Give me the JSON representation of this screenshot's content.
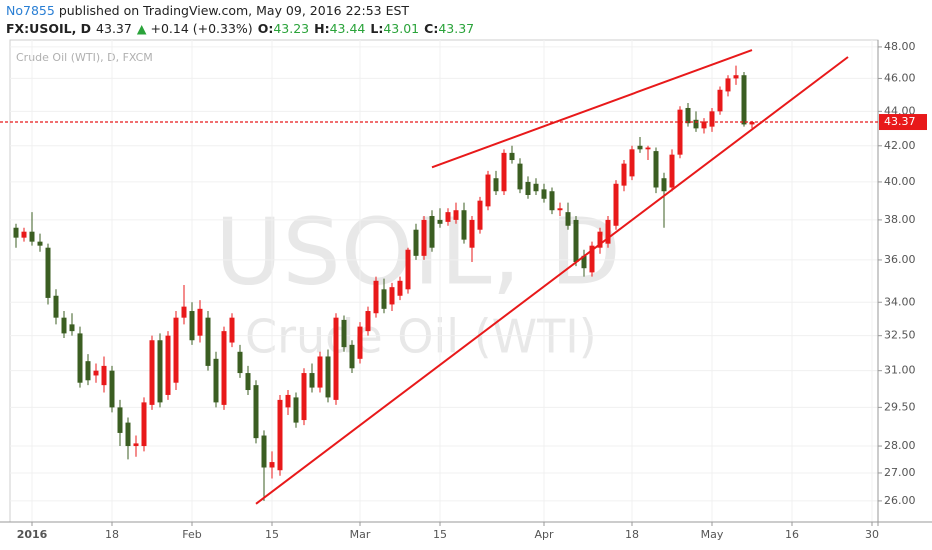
{
  "header": {
    "author": "No7855",
    "published": "published on TradingView.com, May 09, 2016 22:53 EST",
    "symbol": "FX:USOIL, D",
    "last": "43.37",
    "arrow": "▲",
    "change": "+0.14 (+0.33%)",
    "fields": [
      {
        "label": "O:",
        "value": "43.23"
      },
      {
        "label": "H:",
        "value": "43.44"
      },
      {
        "label": "L:",
        "value": "43.01"
      },
      {
        "label": "C:",
        "value": "43.37"
      }
    ]
  },
  "chart_data": {
    "type": "candlestick",
    "subtitle": "Crude Oil (WTI), D, FXCM",
    "watermark": [
      "USOIL, D",
      "Crude Oil (WTI)"
    ],
    "x": [
      "2015-12-31",
      "2016-01-01",
      "2016-01-04",
      "2016-01-05",
      "2016-01-06",
      "2016-01-07",
      "2016-01-08",
      "2016-01-11",
      "2016-01-12",
      "2016-01-13",
      "2016-01-14",
      "2016-01-15",
      "2016-01-18",
      "2016-01-19",
      "2016-01-20",
      "2016-01-21",
      "2016-01-22",
      "2016-01-25",
      "2016-01-26",
      "2016-01-27",
      "2016-01-28",
      "2016-01-29",
      "2016-02-01",
      "2016-02-02",
      "2016-02-03",
      "2016-02-04",
      "2016-02-05",
      "2016-02-08",
      "2016-02-09",
      "2016-02-10",
      "2016-02-11",
      "2016-02-12",
      "2016-02-15",
      "2016-02-16",
      "2016-02-17",
      "2016-02-18",
      "2016-02-19",
      "2016-02-22",
      "2016-02-23",
      "2016-02-24",
      "2016-02-25",
      "2016-02-26",
      "2016-02-29",
      "2016-03-01",
      "2016-03-02",
      "2016-03-03",
      "2016-03-04",
      "2016-03-07",
      "2016-03-08",
      "2016-03-09",
      "2016-03-10",
      "2016-03-11",
      "2016-03-14",
      "2016-03-15",
      "2016-03-16",
      "2016-03-17",
      "2016-03-18",
      "2016-03-21",
      "2016-03-22",
      "2016-03-23",
      "2016-03-24",
      "2016-03-25",
      "2016-03-28",
      "2016-03-29",
      "2016-03-30",
      "2016-03-31",
      "2016-04-01",
      "2016-04-04",
      "2016-04-05",
      "2016-04-06",
      "2016-04-07",
      "2016-04-08",
      "2016-04-11",
      "2016-04-12",
      "2016-04-13",
      "2016-04-14",
      "2016-04-15",
      "2016-04-18",
      "2016-04-19",
      "2016-04-20",
      "2016-04-21",
      "2016-04-22",
      "2016-04-25",
      "2016-04-26",
      "2016-04-27",
      "2016-04-28",
      "2016-04-29",
      "2016-05-02",
      "2016-05-03",
      "2016-05-04",
      "2016-05-05",
      "2016-05-06",
      "2016-05-09"
    ],
    "open": [
      37.6,
      37.1,
      37.4,
      36.9,
      36.6,
      34.3,
      33.3,
      33.0,
      32.6,
      31.4,
      30.8,
      30.4,
      31.0,
      29.5,
      28.9,
      28.0,
      28.0,
      29.6,
      32.3,
      30.0,
      30.5,
      33.3,
      33.6,
      32.5,
      33.3,
      31.5,
      29.6,
      32.2,
      31.8,
      30.9,
      30.4,
      28.4,
      27.2,
      27.1,
      29.5,
      29.9,
      29.0,
      30.9,
      30.3,
      31.6,
      29.8,
      33.2,
      32.1,
      31.5,
      32.7,
      33.5,
      34.6,
      33.9,
      34.3,
      34.6,
      37.5,
      36.2,
      38.2,
      38.0,
      37.9,
      38.0,
      38.5,
      36.6,
      37.5,
      38.7,
      40.2,
      39.5,
      41.6,
      41.0,
      40.0,
      39.9,
      39.6,
      39.5,
      38.5,
      38.4,
      38.0,
      36.2,
      35.4,
      36.6,
      36.8,
      37.7,
      39.8,
      40.3,
      42.0,
      41.8,
      41.7,
      40.2,
      39.7,
      41.5,
      44.2,
      43.5,
      43.0,
      43.1,
      44.0,
      45.2,
      46.0,
      46.2,
      43.23
    ],
    "high": [
      37.8,
      37.6,
      38.4,
      37.3,
      36.8,
      34.6,
      33.6,
      33.5,
      32.9,
      31.7,
      31.3,
      31.6,
      31.2,
      29.8,
      29.1,
      28.4,
      29.9,
      32.5,
      32.6,
      32.7,
      33.6,
      34.8,
      34.0,
      34.1,
      33.6,
      31.8,
      32.9,
      33.5,
      32.1,
      31.2,
      30.6,
      28.6,
      27.8,
      30.0,
      30.2,
      30.1,
      31.1,
      31.3,
      31.8,
      31.9,
      33.5,
      33.4,
      32.3,
      33.1,
      33.8,
      35.2,
      35.1,
      34.9,
      35.2,
      36.6,
      37.8,
      38.2,
      38.5,
      38.6,
      38.6,
      38.9,
      38.9,
      38.2,
      39.2,
      40.6,
      40.6,
      41.8,
      42.0,
      41.3,
      40.3,
      40.2,
      39.9,
      39.7,
      38.9,
      38.9,
      38.2,
      36.5,
      36.9,
      37.6,
      38.2,
      40.1,
      41.2,
      42.0,
      42.5,
      42.0,
      41.9,
      40.5,
      41.8,
      44.3,
      44.5,
      44.0,
      43.6,
      44.2,
      45.5,
      46.2,
      46.8,
      46.4,
      43.44
    ],
    "low": [
      36.6,
      36.9,
      36.7,
      36.4,
      33.9,
      33.0,
      32.4,
      32.5,
      30.3,
      30.4,
      30.5,
      30.1,
      29.3,
      28.0,
      27.5,
      27.6,
      27.8,
      29.4,
      29.5,
      29.8,
      30.2,
      33.0,
      32.1,
      32.2,
      31.0,
      29.5,
      29.4,
      32.0,
      30.7,
      30.0,
      28.1,
      26.0,
      26.8,
      26.9,
      29.2,
      28.7,
      28.8,
      30.1,
      30.1,
      29.7,
      29.6,
      31.8,
      30.9,
      31.3,
      32.5,
      33.3,
      33.5,
      33.6,
      34.1,
      34.4,
      36.0,
      36.0,
      36.4,
      37.6,
      37.7,
      37.8,
      36.8,
      35.9,
      37.3,
      38.5,
      39.3,
      39.3,
      41.0,
      39.4,
      39.1,
      39.3,
      38.9,
      38.3,
      38.2,
      37.5,
      35.7,
      35.2,
      35.2,
      36.3,
      36.6,
      37.5,
      39.5,
      40.1,
      41.6,
      41.2,
      39.4,
      37.6,
      39.5,
      41.3,
      43.1,
      42.8,
      42.7,
      42.8,
      43.8,
      44.9,
      45.6,
      43.1,
      43.01
    ],
    "close": [
      37.1,
      37.4,
      36.9,
      36.7,
      34.2,
      33.3,
      32.6,
      32.7,
      30.5,
      30.6,
      31.0,
      31.2,
      29.5,
      28.5,
      28.0,
      28.1,
      29.7,
      32.3,
      29.7,
      32.5,
      33.3,
      33.8,
      32.3,
      33.7,
      31.2,
      29.7,
      32.7,
      33.3,
      30.9,
      30.2,
      28.3,
      27.2,
      27.4,
      29.8,
      30.0,
      28.9,
      30.9,
      30.3,
      31.6,
      29.9,
      33.3,
      32.0,
      31.1,
      32.9,
      33.6,
      35.0,
      33.7,
      34.7,
      35.0,
      36.5,
      36.2,
      38.0,
      36.6,
      37.8,
      38.4,
      38.5,
      37.0,
      38.0,
      39.0,
      40.4,
      39.5,
      41.6,
      41.2,
      39.6,
      39.3,
      39.5,
      39.1,
      38.5,
      38.6,
      37.7,
      35.9,
      35.6,
      36.7,
      37.4,
      38.0,
      39.9,
      41.0,
      41.8,
      41.8,
      41.9,
      39.7,
      39.5,
      41.5,
      44.1,
      43.3,
      43.0,
      43.4,
      44.0,
      45.3,
      46.0,
      46.2,
      43.23,
      43.37
    ],
    "up_color": "#e8191a",
    "down_color": "#3b5e22",
    "xlim": [
      "2015-12-29",
      "2016-05-31"
    ],
    "xticks": [
      {
        "value": "2016-01-04",
        "label": "2016"
      },
      {
        "value": "2016-01-18",
        "label": "18"
      },
      {
        "value": "2016-02-01",
        "label": "Feb"
      },
      {
        "value": "2016-02-15",
        "label": "15"
      },
      {
        "value": "2016-03-01",
        "label": "Mar"
      },
      {
        "value": "2016-03-15",
        "label": "15"
      },
      {
        "value": "2016-04-01",
        "label": "Apr"
      },
      {
        "value": "2016-04-18",
        "label": "18"
      },
      {
        "value": "2016-05-02",
        "label": "May"
      },
      {
        "value": "2016-05-16",
        "label": "16"
      },
      {
        "value": "2016-05-30",
        "label": "30"
      }
    ],
    "ylim": [
      25.27,
      48.45
    ],
    "log_scale": true,
    "yticks": [
      {
        "value": 26,
        "label": "26.00"
      },
      {
        "value": 27,
        "label": "27.00"
      },
      {
        "value": 28,
        "label": "28.00"
      },
      {
        "value": 29.5,
        "label": "29.50"
      },
      {
        "value": 31,
        "label": "31.00"
      },
      {
        "value": 32.5,
        "label": "32.50"
      },
      {
        "value": 34,
        "label": "34.00"
      },
      {
        "value": 36,
        "label": "36.00"
      },
      {
        "value": 38,
        "label": "38.00"
      },
      {
        "value": 40,
        "label": "40.00"
      },
      {
        "value": 42,
        "label": "42.00"
      },
      {
        "value": 44,
        "label": "44.00"
      },
      {
        "value": 46,
        "label": "46.00"
      },
      {
        "value": 48,
        "label": "48.00"
      }
    ],
    "grid": true,
    "price_line": {
      "value": 43.37,
      "color": "#e8191a"
    },
    "trendlines": [
      {
        "from": {
          "x": "2016-02-11",
          "y": 25.9
        },
        "to": {
          "x": "2016-05-25",
          "y": 47.35
        },
        "color": "#e8191a"
      },
      {
        "from": {
          "x": "2016-03-14",
          "y": 40.8
        },
        "to": {
          "x": "2016-05-09",
          "y": 47.8
        },
        "color": "#e8191a"
      }
    ]
  }
}
